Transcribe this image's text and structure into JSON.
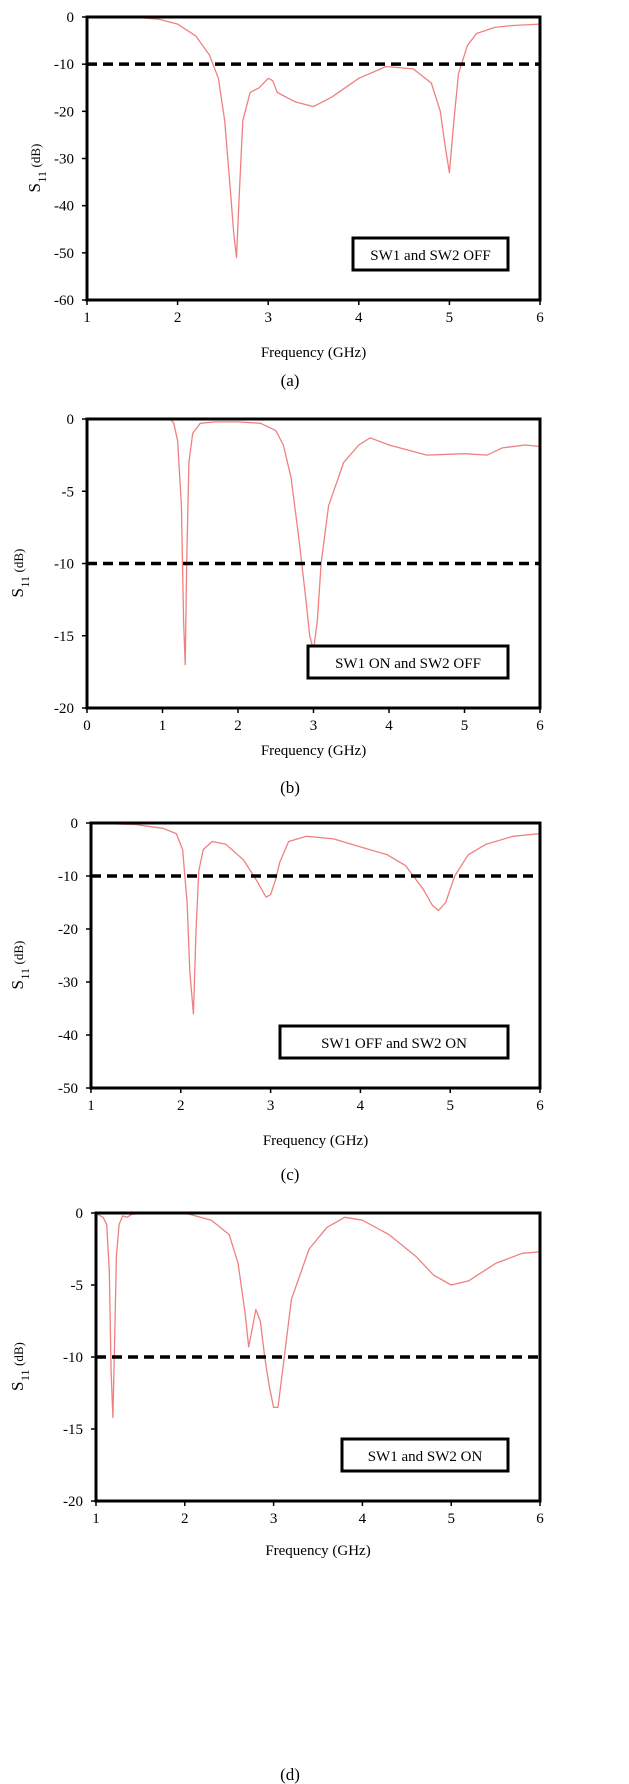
{
  "chart_data": [
    {
      "type": "line",
      "caption": "(a)",
      "xlabel": "Frequency (GHz)",
      "ylabel_main": "S",
      "ylabel_sub": "11",
      "ylabel_unit": "(dB)",
      "xlim": [
        1,
        6
      ],
      "ylim": [
        -60,
        0
      ],
      "xticks": [
        1,
        2,
        3,
        4,
        5,
        6
      ],
      "yticks": [
        0,
        -10,
        -20,
        -30,
        -40,
        -50,
        -60
      ],
      "reference_level": -10,
      "annotation": "SW1 and SW2 OFF",
      "annotation_placement": "bottom-right",
      "series": [
        {
          "color": "#f08080",
          "x": [
            1.0,
            1.5,
            1.8,
            2.0,
            2.2,
            2.35,
            2.45,
            2.52,
            2.58,
            2.62,
            2.65,
            2.68,
            2.72,
            2.8,
            2.9,
            3.0,
            3.05,
            3.1,
            3.3,
            3.5,
            3.7,
            4.0,
            4.3,
            4.6,
            4.8,
            4.9,
            4.95,
            5.0,
            5.05,
            5.1,
            5.2,
            5.3,
            5.5,
            5.7,
            6.0
          ],
          "y": [
            0,
            0,
            -0.5,
            -1.5,
            -4,
            -8,
            -13,
            -22,
            -36,
            -46,
            -51,
            -38,
            -22,
            -16,
            -15,
            -13,
            -13.5,
            -16,
            -18,
            -19,
            -17,
            -13,
            -10.5,
            -11,
            -14,
            -20,
            -27,
            -33,
            -22,
            -12,
            -6,
            -3.5,
            -2.2,
            -1.8,
            -1.5
          ]
        }
      ]
    },
    {
      "type": "line",
      "caption": "(b)",
      "xlabel": "Frequency (GHz)",
      "ylabel_main": "S",
      "ylabel_sub": "11",
      "ylabel_unit": "(dB)",
      "xlim": [
        0,
        6
      ],
      "ylim": [
        -20,
        0
      ],
      "xticks": [
        0,
        1,
        2,
        3,
        4,
        5,
        6
      ],
      "yticks": [
        0,
        -5,
        -10,
        -15,
        -20
      ],
      "reference_level": -10,
      "annotation": "SW1 ON and SW2 OFF",
      "annotation_placement": "bottom-right",
      "series": [
        {
          "color": "#f08080",
          "x": [
            1.0,
            1.1,
            1.15,
            1.2,
            1.25,
            1.28,
            1.3,
            1.32,
            1.35,
            1.4,
            1.5,
            1.7,
            2.0,
            2.3,
            2.5,
            2.6,
            2.7,
            2.8,
            2.9,
            2.95,
            3.0,
            3.05,
            3.1,
            3.2,
            3.4,
            3.6,
            3.75,
            4.0,
            4.5,
            5.0,
            5.3,
            5.5,
            5.8,
            6.0
          ],
          "y": [
            0,
            0,
            -0.3,
            -1.5,
            -6,
            -14,
            -17,
            -10,
            -3,
            -1,
            -0.3,
            -0.2,
            -0.2,
            -0.3,
            -0.8,
            -1.8,
            -4,
            -8,
            -12.5,
            -15,
            -16,
            -14,
            -10,
            -6,
            -3,
            -1.8,
            -1.3,
            -1.8,
            -2.5,
            -2.4,
            -2.5,
            -2.0,
            -1.8,
            -1.9
          ]
        }
      ]
    },
    {
      "type": "line",
      "caption": "(c)",
      "xlabel": "Frequency (GHz)",
      "ylabel_main": "S",
      "ylabel_sub": "11",
      "ylabel_unit": "(dB)",
      "xlim": [
        1,
        6
      ],
      "ylim": [
        -50,
        0
      ],
      "xticks": [
        1,
        2,
        3,
        4,
        5,
        6
      ],
      "yticks": [
        0,
        -10,
        -20,
        -30,
        -40,
        -50
      ],
      "reference_level": -10,
      "annotation": "SW1 OFF and SW2 ON",
      "annotation_placement": "bottom-right",
      "series": [
        {
          "color": "#f08080",
          "x": [
            1.0,
            1.5,
            1.8,
            1.95,
            2.02,
            2.07,
            2.1,
            2.14,
            2.17,
            2.2,
            2.25,
            2.35,
            2.5,
            2.7,
            2.85,
            2.95,
            3.0,
            3.05,
            3.1,
            3.2,
            3.4,
            3.7,
            4.0,
            4.3,
            4.5,
            4.7,
            4.8,
            4.87,
            4.95,
            5.05,
            5.2,
            5.4,
            5.7,
            6.0
          ],
          "y": [
            0,
            -0.3,
            -1,
            -2,
            -5,
            -15,
            -28,
            -36,
            -20,
            -9,
            -5,
            -3.5,
            -4,
            -7,
            -11,
            -14,
            -13.5,
            -11,
            -7.5,
            -3.5,
            -2.5,
            -3,
            -4.5,
            -6,
            -8,
            -12.5,
            -15.5,
            -16.5,
            -15,
            -10,
            -6,
            -4,
            -2.5,
            -2
          ]
        }
      ]
    },
    {
      "type": "line",
      "caption": "(d)",
      "xlabel": "Frequency (GHz)",
      "ylabel_main": "S",
      "ylabel_sub": "11",
      "ylabel_unit": "(dB)",
      "xlim": [
        1,
        6
      ],
      "ylim": [
        -20,
        0
      ],
      "xticks": [
        1,
        2,
        3,
        4,
        5,
        6
      ],
      "yticks": [
        0,
        -5,
        -10,
        -15,
        -20
      ],
      "reference_level": -10,
      "annotation": "SW1 and SW2 ON",
      "annotation_placement": "bottom-right",
      "series": [
        {
          "color": "#f08080",
          "x": [
            1.0,
            1.05,
            1.08,
            1.12,
            1.15,
            1.17,
            1.19,
            1.21,
            1.23,
            1.26,
            1.3,
            1.35,
            1.4,
            1.6,
            2.0,
            2.3,
            2.5,
            2.6,
            2.68,
            2.72,
            2.76,
            2.8,
            2.85,
            2.9,
            2.95,
            3.0,
            3.05,
            3.1,
            3.2,
            3.4,
            3.6,
            3.8,
            4.0,
            4.3,
            4.6,
            4.8,
            5.0,
            5.2,
            5.5,
            5.8,
            6.0
          ],
          "y": [
            0,
            -0.2,
            -0.3,
            -0.8,
            -4,
            -11,
            -14.2,
            -9,
            -3,
            -0.8,
            -0.2,
            -0.3,
            -0.1,
            0,
            0,
            -0.5,
            -1.5,
            -3.5,
            -7,
            -9.3,
            -8,
            -6.7,
            -7.5,
            -10,
            -12,
            -13.5,
            -13.5,
            -11,
            -6,
            -2.5,
            -1,
            -0.3,
            -0.5,
            -1.5,
            -3,
            -4.3,
            -5.0,
            -4.7,
            -3.5,
            -2.8,
            -2.7
          ]
        }
      ]
    }
  ]
}
